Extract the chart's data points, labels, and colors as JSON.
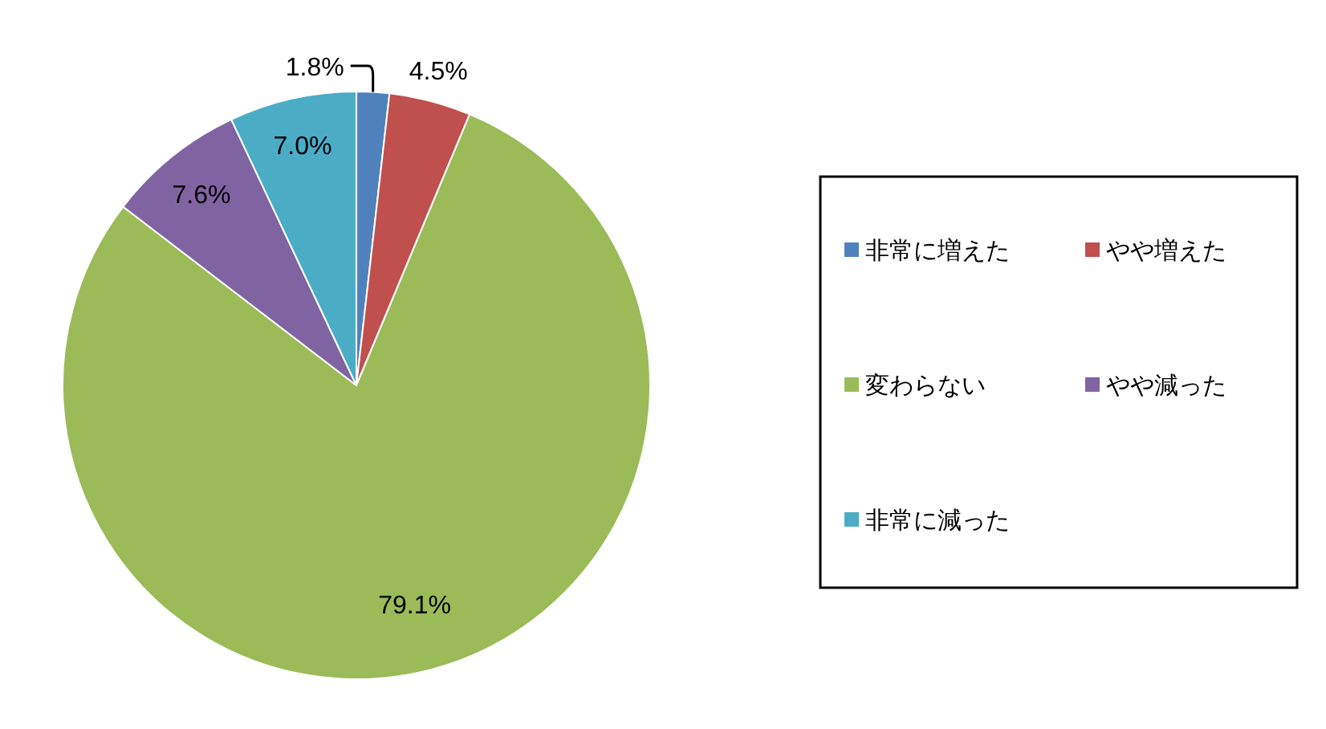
{
  "chart_data": {
    "type": "pie",
    "categories": [
      "非常に増えた",
      "やや増えた",
      "変わらない",
      "やや減った",
      "非常に減った"
    ],
    "values": [
      1.8,
      4.5,
      79.1,
      7.6,
      7.0
    ],
    "colors": [
      "#4f81bd",
      "#c0504d",
      "#9bbb59",
      "#8064a2",
      "#4bacc6"
    ],
    "value_labels": [
      "1.8%",
      "4.5%",
      "79.1%",
      "7.6%",
      "7.0%"
    ],
    "legend": "right"
  }
}
